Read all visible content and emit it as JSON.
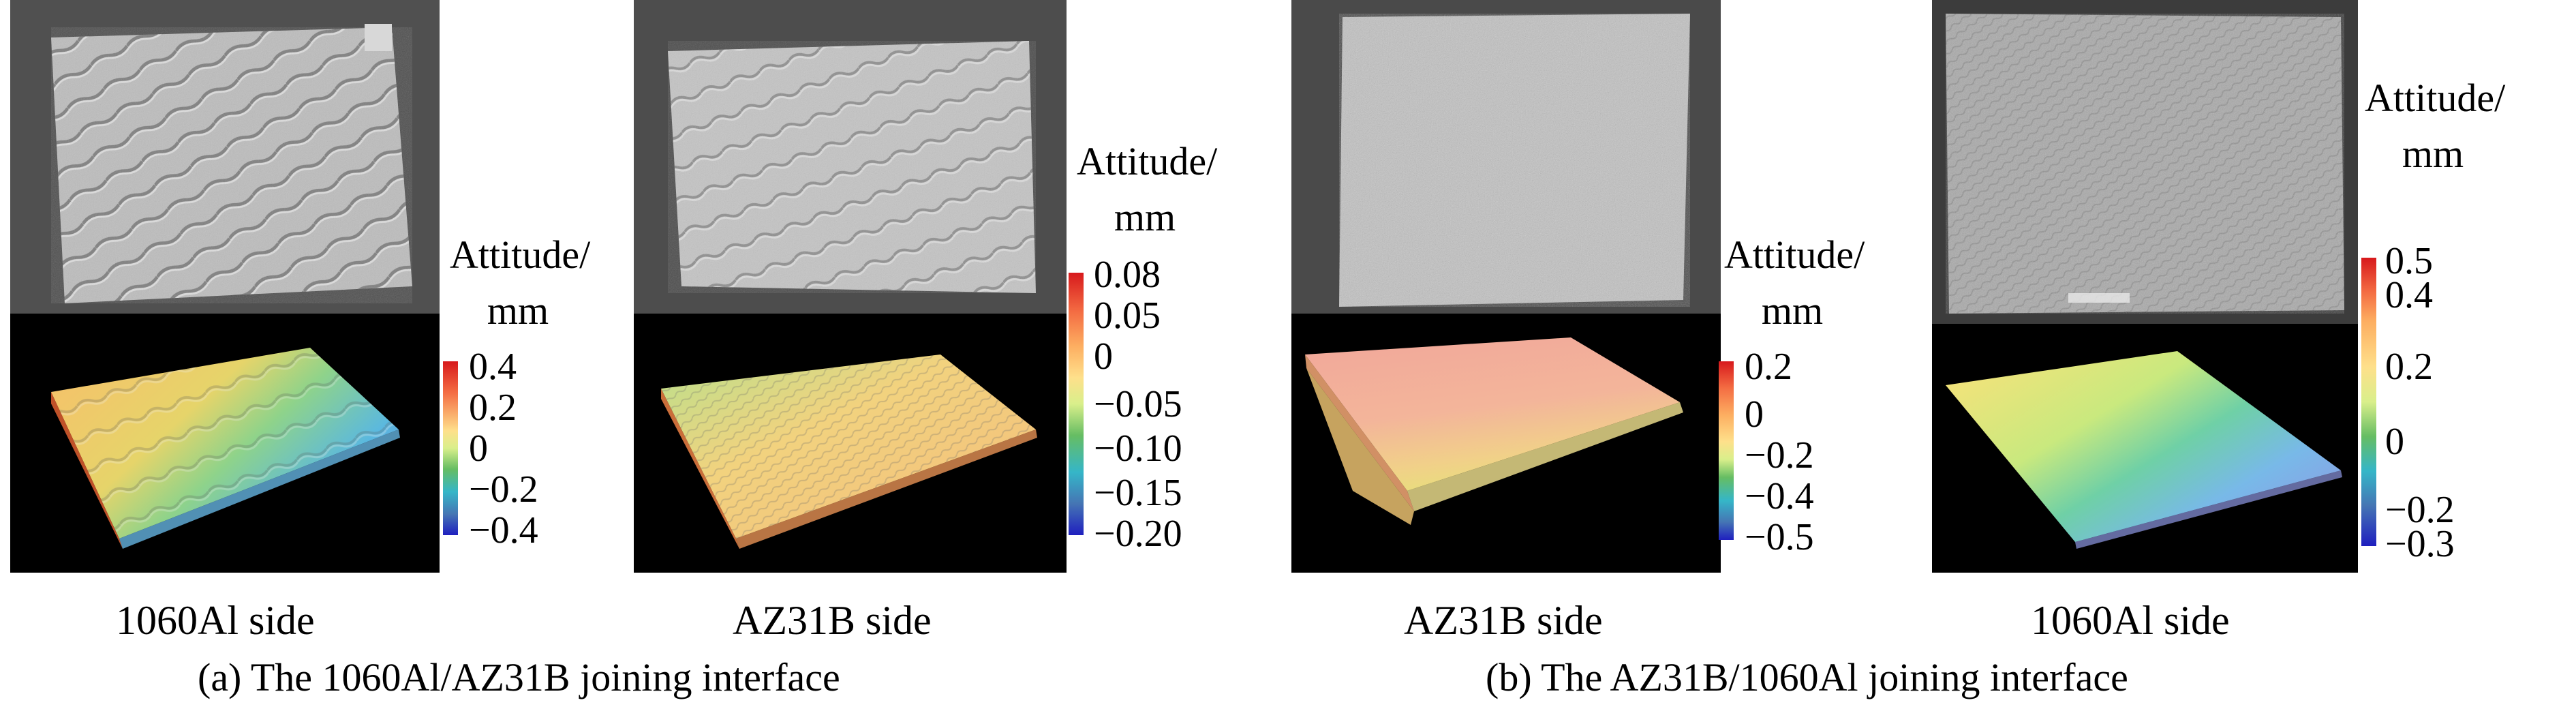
{
  "panels": [
    {
      "caption": "(a) The 1060Al/AZ31B joining interface",
      "samples": [
        {
          "label": "1060Al side",
          "colorbar": {
            "title": "Attitude/",
            "unit": "mm",
            "ticks": [
              "0.4",
              "0.2",
              "0",
              "−0.2",
              "−0.4"
            ]
          }
        },
        {
          "label": "AZ31B side",
          "colorbar": {
            "title": "Attitude/",
            "unit": "mm",
            "ticks": [
              "0.08",
              "0.05",
              "0",
              "−0.05",
              "−0.10",
              "−0.15",
              "−0.20"
            ]
          }
        }
      ]
    },
    {
      "caption": "(b) The AZ31B/1060Al joining interface",
      "samples": [
        {
          "label": "AZ31B side",
          "colorbar": {
            "title": "Attitude/",
            "unit": "mm",
            "ticks": [
              "0.2",
              "0",
              "−0.2",
              "−0.4",
              "−0.5"
            ]
          }
        },
        {
          "label": "1060Al side",
          "colorbar": {
            "title": "Attitude/",
            "unit": "mm",
            "ticks": [
              "0.5",
              "0.4",
              "0.2",
              "0",
              "−0.2",
              "−0.3"
            ]
          }
        }
      ]
    }
  ],
  "colors": {
    "colormap": [
      "#d7191c",
      "#f46d43",
      "#fdae61",
      "#fee08b",
      "#d9ef8b",
      "#66bd63",
      "#1a9850",
      "#35b6c8",
      "#4575b4",
      "#1f1fbf"
    ]
  }
}
